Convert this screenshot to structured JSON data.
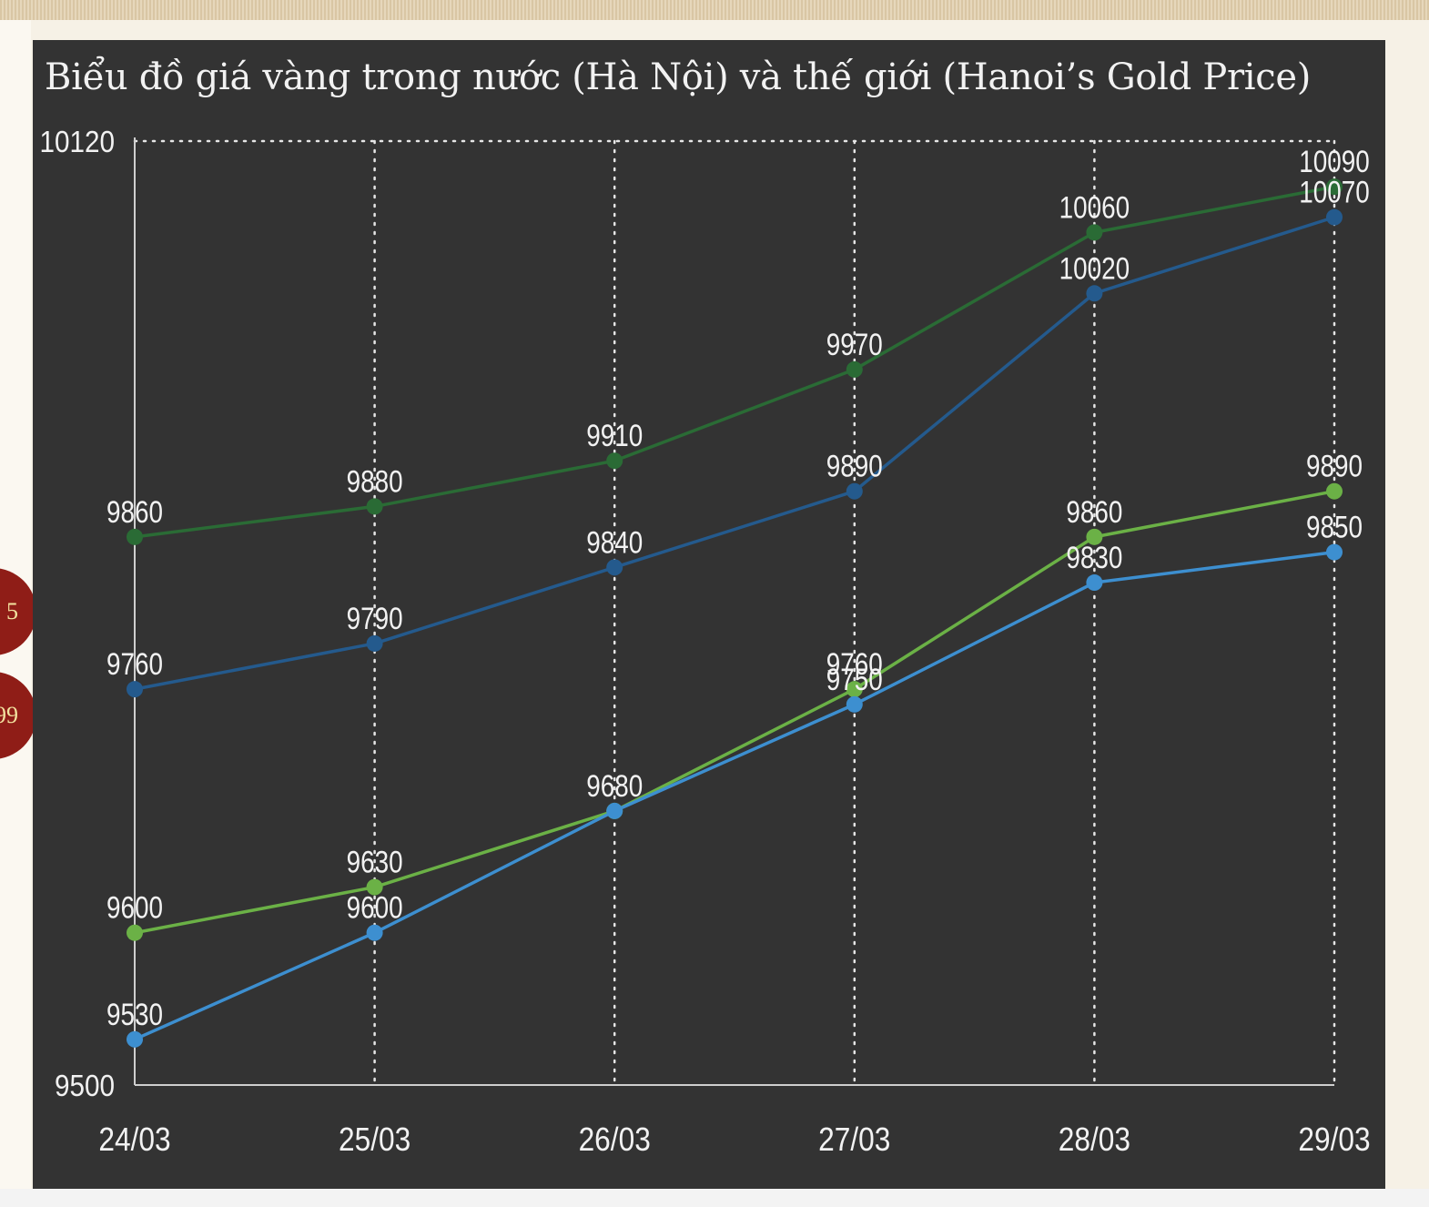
{
  "badges": [
    {
      "text": "5"
    },
    {
      "text": "99"
    }
  ],
  "chart_data": {
    "type": "line",
    "title": "Biểu đồ giá vàng trong nước (Hà Nội) và thế giới (Hanoi’s Gold Price)",
    "xlabel": "",
    "ylabel": "",
    "categories": [
      "24/03",
      "25/03",
      "26/03",
      "27/03",
      "28/03",
      "29/03"
    ],
    "ylim": [
      9500,
      10120
    ],
    "y_tick_labels": [
      "9500",
      "10120"
    ],
    "grid": true,
    "legend": "none",
    "series": [
      {
        "values": [
          9860,
          9880,
          9910,
          9970,
          10060,
          10090
        ],
        "color": "#2a6b35"
      },
      {
        "values": [
          9760,
          9790,
          9840,
          9890,
          10020,
          10070
        ],
        "color": "#245a8d"
      },
      {
        "values": [
          9600,
          9630,
          9680,
          9760,
          9860,
          9890
        ],
        "color": "#6bb146"
      },
      {
        "values": [
          9530,
          9600,
          9680,
          9750,
          9830,
          9850
        ],
        "color": "#3d8fd0"
      }
    ],
    "data_labels": [
      [
        "9860",
        "9880",
        "9910",
        "9970",
        "10060",
        "10090"
      ],
      [
        "9760",
        "9790",
        "9840",
        "9890",
        "10020",
        "10070"
      ],
      [
        "9600",
        "9630",
        "9680",
        "9760",
        "9860",
        "9890"
      ],
      [
        "9530",
        "9600",
        "",
        "9750",
        "9830",
        "9850"
      ]
    ],
    "colors": {
      "panel_bg": "#333333",
      "axis": "#cfcfcf",
      "grid": "#e6e6e6",
      "text": "#f2f2f2"
    }
  }
}
